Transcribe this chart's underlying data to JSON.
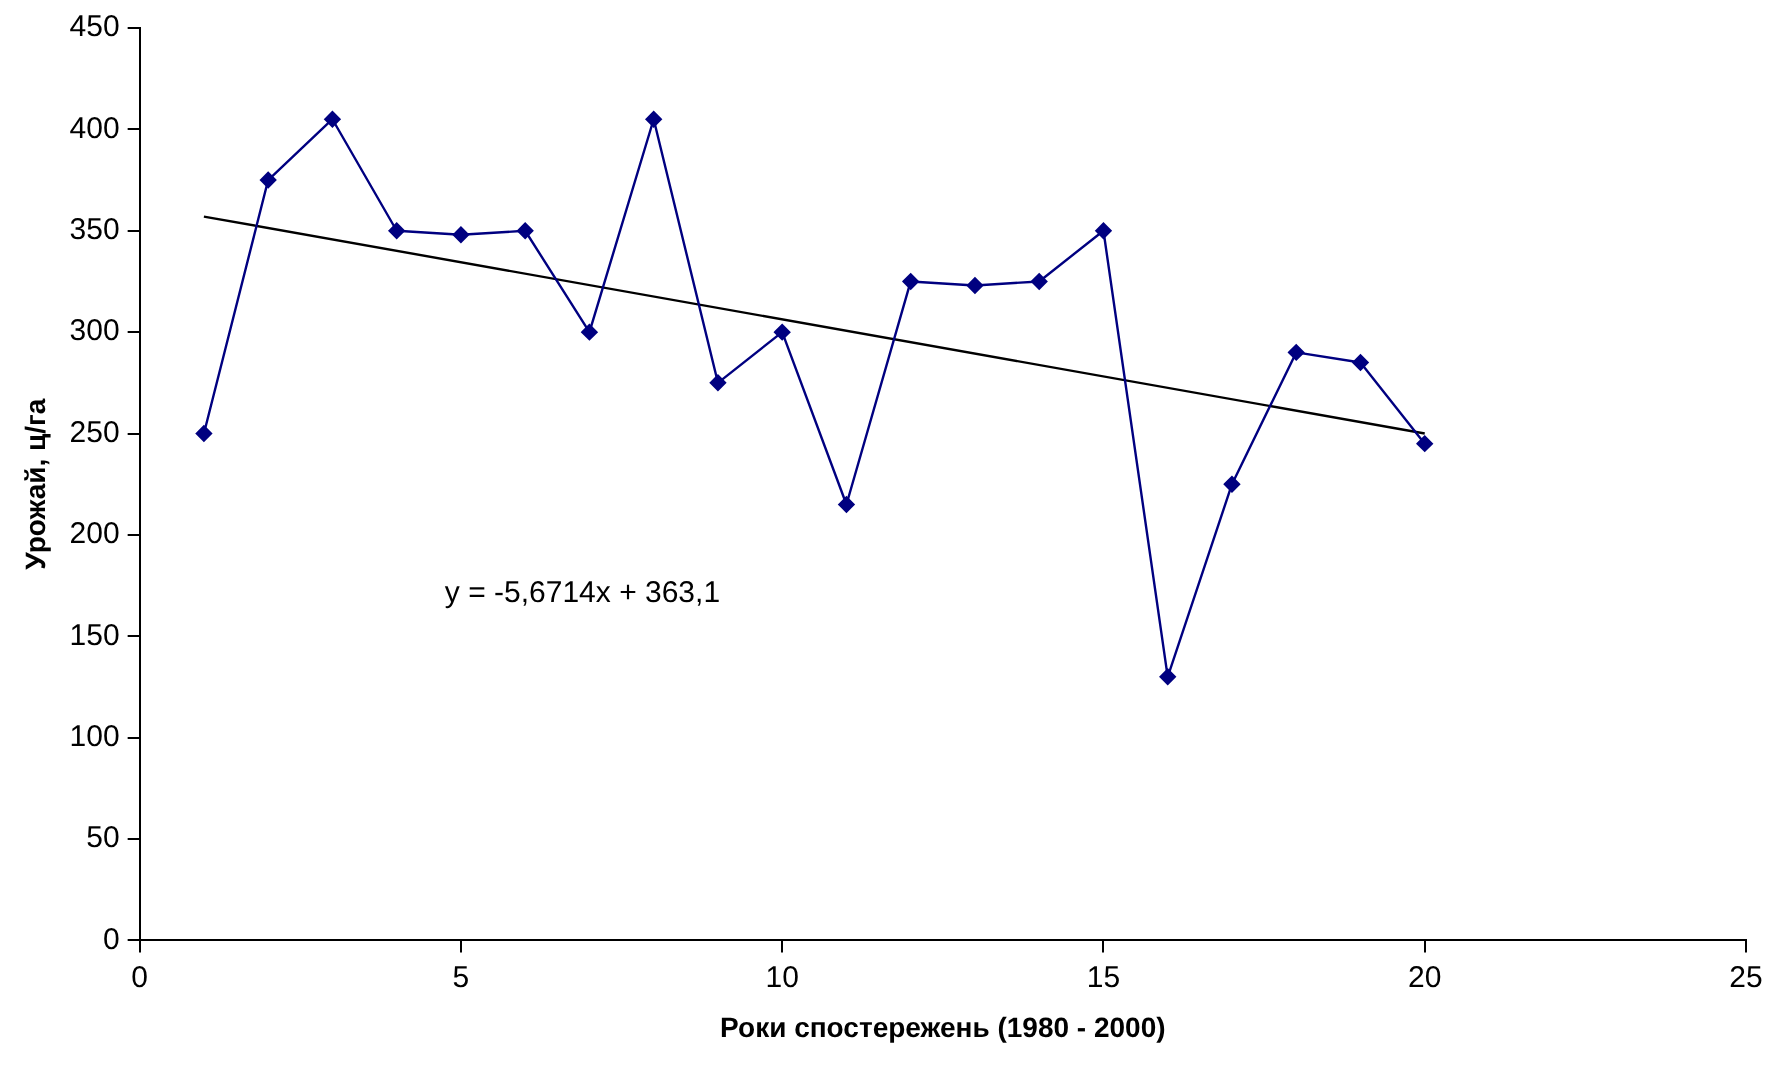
{
  "chart_data": {
    "type": "line",
    "xlabel": "Роки спостережень (1980 - 2000)",
    "ylabel": "Урожай, ц/га",
    "xlim": [
      0,
      25
    ],
    "xticks": [
      0,
      5,
      10,
      15,
      20,
      25
    ],
    "ylim": [
      0,
      450
    ],
    "yticks": [
      0,
      50,
      100,
      150,
      200,
      250,
      300,
      350,
      400,
      450
    ],
    "grid": false,
    "legend": false,
    "marker": "diamond",
    "series": [
      {
        "color": "#000080",
        "x": [
          1,
          2,
          3,
          4,
          5,
          6,
          7,
          8,
          9,
          10,
          11,
          12,
          13,
          14,
          15,
          16,
          17,
          18,
          19,
          20
        ],
        "values": [
          250,
          375,
          405,
          350,
          348,
          350,
          300,
          405,
          275,
          300,
          215,
          325,
          323,
          325,
          350,
          130,
          225,
          290,
          285,
          245
        ]
      },
      {
        "type": "line",
        "marker": "none",
        "color": "#000000",
        "x": [
          1,
          20
        ],
        "values": [
          357,
          250
        ]
      }
    ],
    "annotations": [
      "y = -5,6714x + 363,1"
    ]
  }
}
